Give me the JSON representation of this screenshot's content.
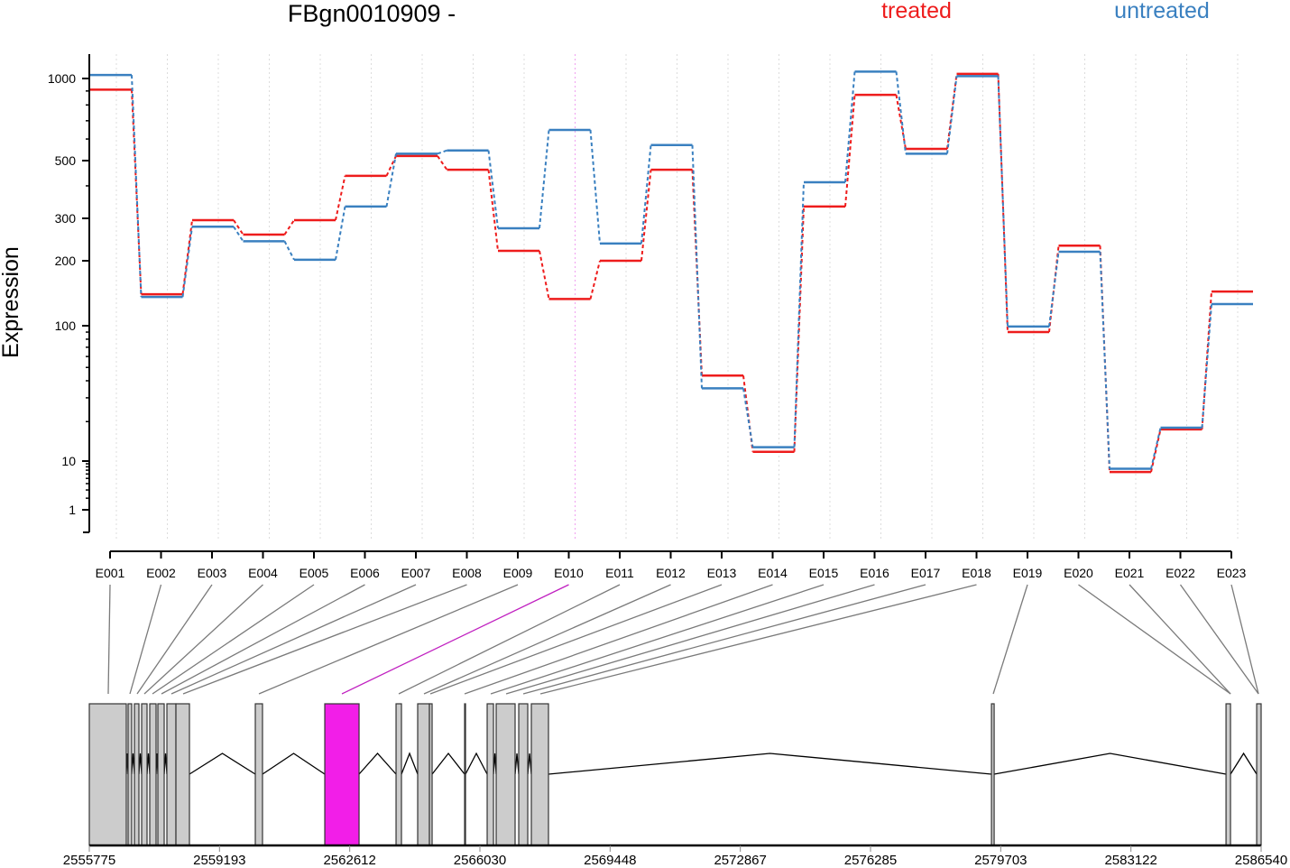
{
  "chart_data": {
    "type": "line",
    "title": "FBgn0010909 -",
    "ylabel": "Expression",
    "yscale": "log",
    "y_ticks": [
      1,
      10,
      100,
      200,
      300,
      500,
      1000
    ],
    "grid": "vertical dotted lines at each exon",
    "legend_placement": "top-right",
    "categories": [
      "E001",
      "E002",
      "E003",
      "E004",
      "E005",
      "E006",
      "E007",
      "E008",
      "E009",
      "E010",
      "E011",
      "E012",
      "E013",
      "E014",
      "E015",
      "E016",
      "E017",
      "E018",
      "E019",
      "E020",
      "E021",
      "E022",
      "E023"
    ],
    "highlight_category": "E010",
    "series": [
      {
        "name": "treated",
        "color": "#ee1c1c",
        "values": [
          910,
          140,
          295,
          257,
          295,
          437,
          520,
          461,
          220,
          133,
          200,
          461,
          43.6,
          11.8,
          333,
          871,
          552,
          1040,
          90,
          231,
          6.5,
          17.5,
          144
        ]
      },
      {
        "name": "untreated",
        "color": "#3a80c0",
        "values": [
          1030,
          136,
          277,
          241,
          202,
          333,
          530,
          545,
          273,
          648,
          236,
          570,
          35.2,
          12.8,
          413,
          1060,
          530,
          1020,
          98.7,
          218,
          7.4,
          18,
          126
        ]
      }
    ],
    "gene_model": {
      "x_ticks": [
        2555775,
        2559193,
        2562612,
        2566030,
        2569448,
        2572867,
        2576285,
        2579703,
        2583122,
        2586540
      ],
      "xlim": [
        2555775,
        2586540
      ],
      "exon_color": "#cccccc",
      "highlight_color": "#f21ee8",
      "exons": [
        {
          "start": 2555775,
          "end": 2556746
        },
        {
          "start": 2556793,
          "end": 2556888
        },
        {
          "start": 2556959,
          "end": 2557078
        },
        {
          "start": 2557149,
          "end": 2557291
        },
        {
          "start": 2557362,
          "end": 2557528
        },
        {
          "start": 2557575,
          "end": 2557741
        },
        {
          "start": 2557812,
          "end": 2558049
        },
        {
          "start": 2558049,
          "end": 2558404
        },
        {
          "start": 2560133,
          "end": 2560322
        },
        {
          "start": 2561957,
          "end": 2562857,
          "highlight": true
        },
        {
          "start": 2563828,
          "end": 2563970
        },
        {
          "start": 2564396,
          "end": 2564704
        },
        {
          "start": 2564704,
          "end": 2564775
        },
        {
          "start": 2565628,
          "end": 2565652
        },
        {
          "start": 2566220,
          "end": 2566386
        },
        {
          "start": 2566457,
          "end": 2566954
        },
        {
          "start": 2567049,
          "end": 2567286
        },
        {
          "start": 2567380,
          "end": 2567830
        },
        {
          "start": 2579460,
          "end": 2579531
        },
        {
          "start": 2585618,
          "end": 2585736
        },
        {
          "start": 2586423,
          "end": 2586540
        }
      ],
      "exon_bin_positions": [
        2556272,
        2556841,
        2557030,
        2557220,
        2557433,
        2557670,
        2557930,
        2558238,
        2560228,
        2562407,
        2563899,
        2564562,
        2564728,
        2565628,
        2566315,
        2566718,
        2567168,
        2567618,
        2579507,
        2585736,
        2585736,
        2586470,
        2586470
      ]
    }
  }
}
